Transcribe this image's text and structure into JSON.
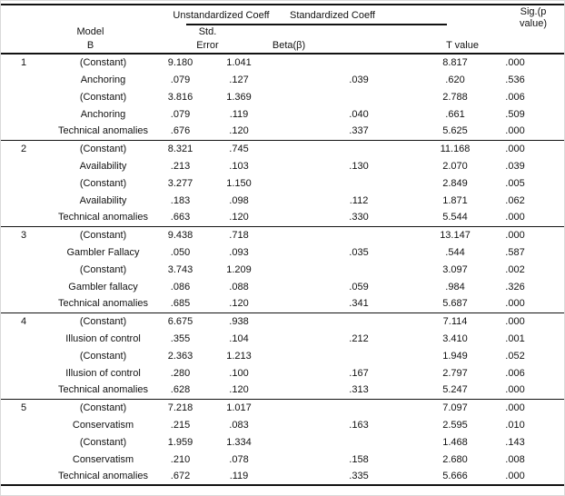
{
  "colors": {
    "text": "#121212",
    "rule": "#121212",
    "background": "#ffffff"
  },
  "table": {
    "header": {
      "group_unstandardized": "Unstandardized Coeff",
      "group_standardized": "Standardized Coeff",
      "col_model": "Model",
      "col_b": "B",
      "sub_std": "Std.",
      "sub_error": "Error",
      "sub_beta": "Beta(β)",
      "col_t": "T value",
      "col_sig_line1": "Sig.(p",
      "col_sig_line2": "value)"
    },
    "models": [
      {
        "number": "1",
        "rows": [
          {
            "predictor": "(Constant)",
            "b": "9.180",
            "std_error": "1.041",
            "beta_std": "",
            "t": "8.817",
            "sig": ".000"
          },
          {
            "predictor": "Anchoring",
            "b": ".079",
            "std_error": ".127",
            "beta_std": ".039",
            "t": ".620",
            "sig": ".536"
          },
          {
            "predictor": "(Constant)",
            "b": "3.816",
            "std_error": "1.369",
            "beta_std": "",
            "t": "2.788",
            "sig": ".006"
          },
          {
            "predictor": "Anchoring",
            "b": ".079",
            "std_error": ".119",
            "beta_std": ".040",
            "t": ".661",
            "sig": ".509"
          },
          {
            "predictor": "Technical anomalies",
            "b": ".676",
            "std_error": ".120",
            "beta_std": ".337",
            "t": "5.625",
            "sig": ".000"
          }
        ]
      },
      {
        "number": "2",
        "rows": [
          {
            "predictor": "(Constant)",
            "b": "8.321",
            "std_error": ".745",
            "beta_std": "",
            "t": "11.168",
            "sig": ".000"
          },
          {
            "predictor": "Availability",
            "b": ".213",
            "std_error": ".103",
            "beta_std": ".130",
            "t": "2.070",
            "sig": ".039"
          },
          {
            "predictor": "(Constant)",
            "b": "3.277",
            "std_error": "1.150",
            "beta_std": "",
            "t": "2.849",
            "sig": ".005"
          },
          {
            "predictor": "Availability",
            "b": ".183",
            "std_error": ".098",
            "beta_std": ".112",
            "t": "1.871",
            "sig": ".062"
          },
          {
            "predictor": "Technical anomalies",
            "b": ".663",
            "std_error": ".120",
            "beta_std": ".330",
            "t": "5.544",
            "sig": ".000"
          }
        ]
      },
      {
        "number": "3",
        "rows": [
          {
            "predictor": "(Constant)",
            "b": "9.438",
            "std_error": ".718",
            "beta_std": "",
            "t": "13.147",
            "sig": ".000"
          },
          {
            "predictor": "Gambler Fallacy",
            "b": ".050",
            "std_error": ".093",
            "beta_std": ".035",
            "t": ".544",
            "sig": ".587"
          },
          {
            "predictor": "(Constant)",
            "b": "3.743",
            "std_error": "1.209",
            "beta_std": "",
            "t": "3.097",
            "sig": ".002"
          },
          {
            "predictor": "Gambler fallacy",
            "b": ".086",
            "std_error": ".088",
            "beta_std": ".059",
            "t": ".984",
            "sig": ".326"
          },
          {
            "predictor": "Technical anomalies",
            "b": ".685",
            "std_error": ".120",
            "beta_std": ".341",
            "t": "5.687",
            "sig": ".000"
          }
        ]
      },
      {
        "number": "4",
        "rows": [
          {
            "predictor": "(Constant)",
            "b": "6.675",
            "std_error": ".938",
            "beta_std": "",
            "t": "7.114",
            "sig": ".000"
          },
          {
            "predictor": "Illusion of control",
            "b": ".355",
            "std_error": ".104",
            "beta_std": ".212",
            "t": "3.410",
            "sig": ".001"
          },
          {
            "predictor": "(Constant)",
            "b": "2.363",
            "std_error": "1.213",
            "beta_std": "",
            "t": "1.949",
            "sig": ".052"
          },
          {
            "predictor": "Illusion of control",
            "b": ".280",
            "std_error": ".100",
            "beta_std": ".167",
            "t": "2.797",
            "sig": ".006"
          },
          {
            "predictor": "Technical anomalies",
            "b": ".628",
            "std_error": ".120",
            "beta_std": ".313",
            "t": "5.247",
            "sig": ".000"
          }
        ]
      },
      {
        "number": "5",
        "rows": [
          {
            "predictor": "(Constant)",
            "b": "7.218",
            "std_error": "1.017",
            "beta_std": "",
            "t": "7.097",
            "sig": ".000"
          },
          {
            "predictor": "Conservatism",
            "b": ".215",
            "std_error": ".083",
            "beta_std": ".163",
            "t": "2.595",
            "sig": ".010"
          },
          {
            "predictor": "(Constant)",
            "b": "1.959",
            "std_error": "1.334",
            "beta_std": "",
            "t": "1.468",
            "sig": ".143"
          },
          {
            "predictor": "Conservatism",
            "b": ".210",
            "std_error": ".078",
            "beta_std": ".158",
            "t": "2.680",
            "sig": ".008"
          },
          {
            "predictor": "Technical anomalies",
            "b": ".672",
            "std_error": ".119",
            "beta_std": ".335",
            "t": "5.666",
            "sig": ".000"
          }
        ]
      }
    ]
  }
}
